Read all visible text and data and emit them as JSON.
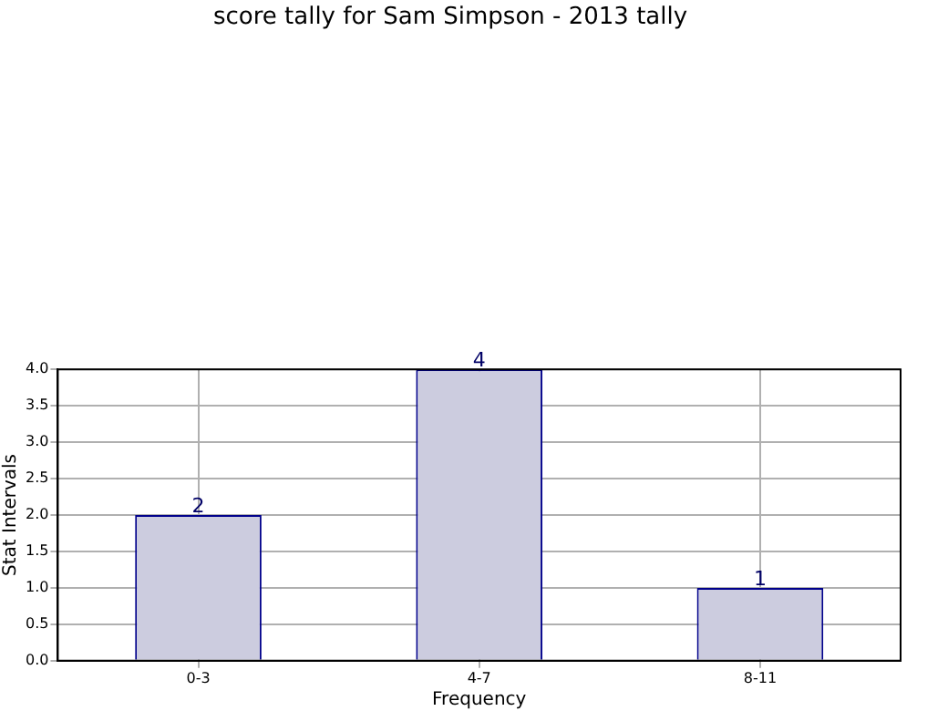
{
  "chart_data": {
    "type": "bar",
    "title": "score tally for Sam Simpson - 2013 tally",
    "xlabel": "Frequency",
    "ylabel": "Stat Intervals",
    "categories": [
      "0-3",
      "4-7",
      "8-11"
    ],
    "values": [
      2,
      4,
      1
    ],
    "color": "#ccccdf",
    "ylim": [
      0,
      4
    ],
    "yticks": [
      {
        "value": 0,
        "label": "0.0"
      },
      {
        "value": 0.5,
        "label": "0.5"
      },
      {
        "value": 1,
        "label": "1.0"
      },
      {
        "value": 1.5,
        "label": "1.5"
      },
      {
        "value": 2,
        "label": "2.0"
      },
      {
        "value": 2.5,
        "label": "2.5"
      },
      {
        "value": 3,
        "label": "3.0"
      },
      {
        "value": 3.5,
        "label": "3.5"
      },
      {
        "value": 4,
        "label": "4.0"
      }
    ],
    "grid": true,
    "data_labels": true
  }
}
